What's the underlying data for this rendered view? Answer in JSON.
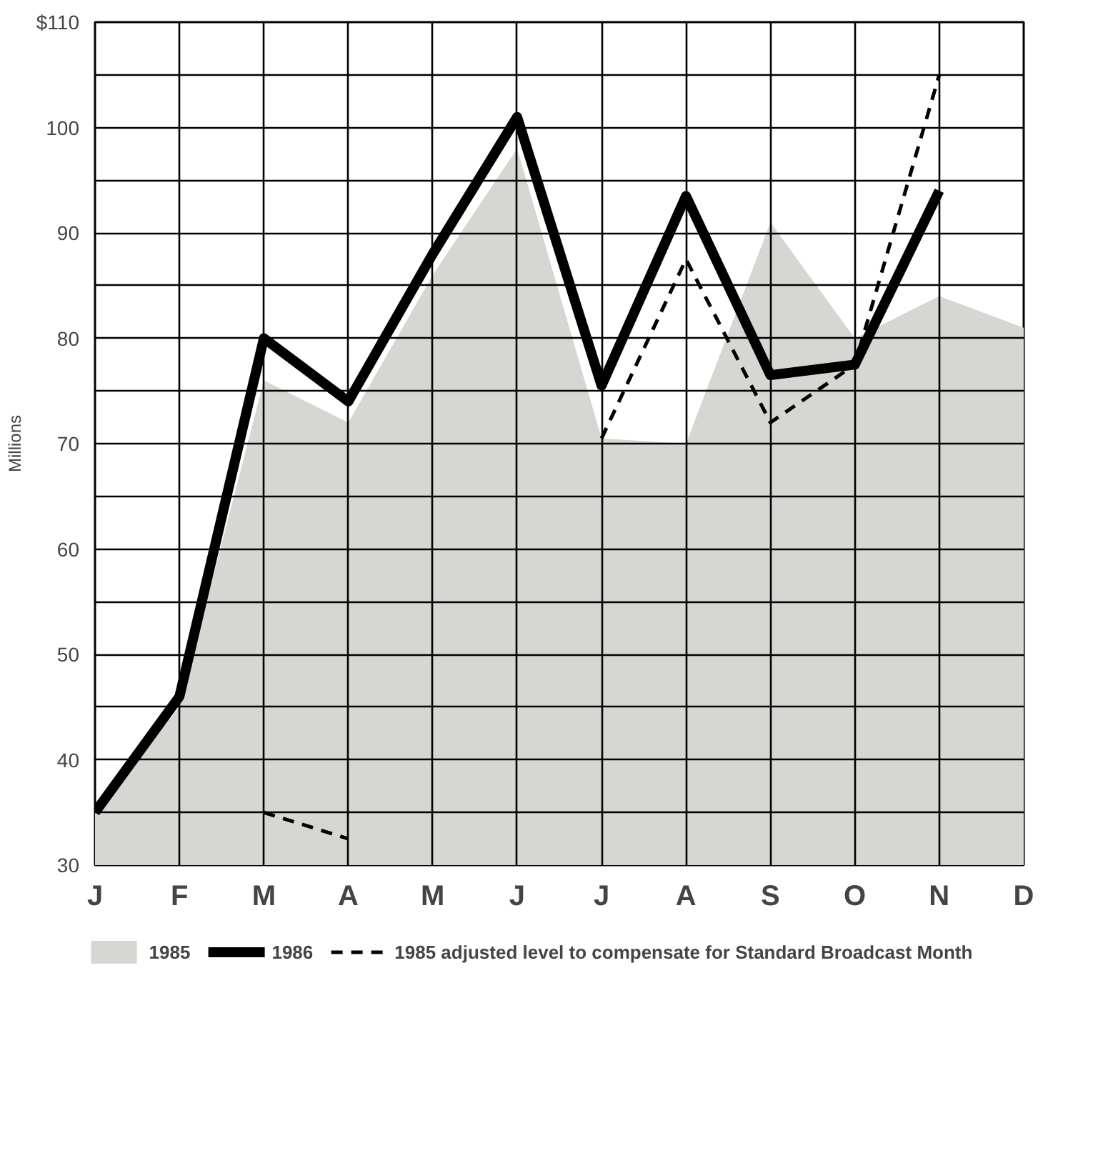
{
  "chart_data": {
    "type": "line",
    "ylabel": "Millions",
    "categories": [
      "J",
      "F",
      "M",
      "A",
      "M",
      "J",
      "J",
      "A",
      "S",
      "O",
      "N",
      "D"
    ],
    "ylim": [
      30,
      110
    ],
    "yticks": [
      30,
      {
        "value": 35,
        "label": null
      },
      40,
      {
        "value": 45,
        "label": null
      },
      50,
      {
        "value": 55,
        "label": null
      },
      60,
      {
        "value": 65,
        "label": null
      },
      70,
      {
        "value": 75,
        "label": null
      },
      80,
      {
        "value": 85,
        "label": null
      },
      90,
      {
        "value": 95,
        "label": null
      },
      100,
      {
        "value": 105,
        "label": null
      },
      {
        "value": 110,
        "label": "$110"
      }
    ],
    "grid": true,
    "legend": "bottom",
    "series": [
      {
        "name": "1985",
        "type": "area",
        "color": "#d6d6d2",
        "values": [
          35,
          45,
          76,
          72,
          86,
          98,
          70.5,
          70,
          91,
          80,
          84,
          81
        ]
      },
      {
        "name": "1986",
        "color": "#000000",
        "line_style": "solid",
        "values": [
          35,
          46,
          80,
          74,
          88,
          101,
          75.5,
          93.5,
          76.5,
          77.5,
          94,
          null
        ]
      },
      {
        "name": "1985 adjusted level to compensate for Standard Broadcast Month",
        "color": "#000000",
        "line_style": "dashed",
        "values": [
          null,
          null,
          null,
          null,
          null,
          null,
          70.5,
          87.5,
          72,
          77.5,
          105,
          null
        ]
      },
      {
        "color": "#000000",
        "line_style": "dashed",
        "values": [
          null,
          null,
          35,
          32.5,
          null,
          null,
          null,
          null,
          null,
          null,
          null,
          null
        ]
      }
    ]
  }
}
